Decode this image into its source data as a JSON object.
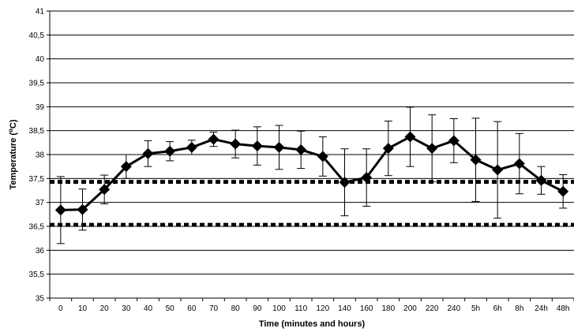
{
  "chart_data": {
    "type": "line",
    "title": "",
    "xlabel": "Time (minutes and hours)",
    "ylabel_parts": {
      "prefix": "Temperature (",
      "superscript": "o",
      "suffix": "C)"
    },
    "categories": [
      "0",
      "10",
      "20",
      "30",
      "40",
      "50",
      "60",
      "70",
      "80",
      "90",
      "100",
      "110",
      "120",
      "140",
      "160",
      "180",
      "200",
      "220",
      "240",
      "5h",
      "6h",
      "8h",
      "24h",
      "48h"
    ],
    "ylim": [
      35,
      41
    ],
    "ytick_step": 0.5,
    "ytick_labels": [
      "35",
      "35,5",
      "36",
      "36,5",
      "37",
      "37,5",
      "38",
      "38,5",
      "39",
      "39,5",
      "40",
      "40,5",
      "41"
    ],
    "grid": true,
    "series": [
      {
        "values": [
          36.84,
          36.85,
          37.27,
          37.75,
          38.02,
          38.07,
          38.15,
          38.32,
          38.22,
          38.18,
          38.15,
          38.1,
          37.96,
          37.42,
          37.52,
          38.13,
          38.37,
          38.13,
          38.29,
          37.89,
          37.68,
          37.81,
          37.46,
          37.23
        ],
        "error": [
          0.7,
          0.43,
          0.3,
          0.25,
          0.27,
          0.2,
          0.15,
          0.15,
          0.29,
          0.4,
          0.46,
          0.39,
          0.41,
          0.7,
          0.6,
          0.57,
          0.62,
          0.7,
          0.46,
          0.87,
          1.01,
          0.63,
          0.29,
          0.35
        ],
        "color": "#000000",
        "marker": "diamond"
      }
    ],
    "reference_lines": [
      {
        "y": 37.43,
        "style": "dotted"
      },
      {
        "y": 36.53,
        "style": "dotted"
      }
    ]
  }
}
